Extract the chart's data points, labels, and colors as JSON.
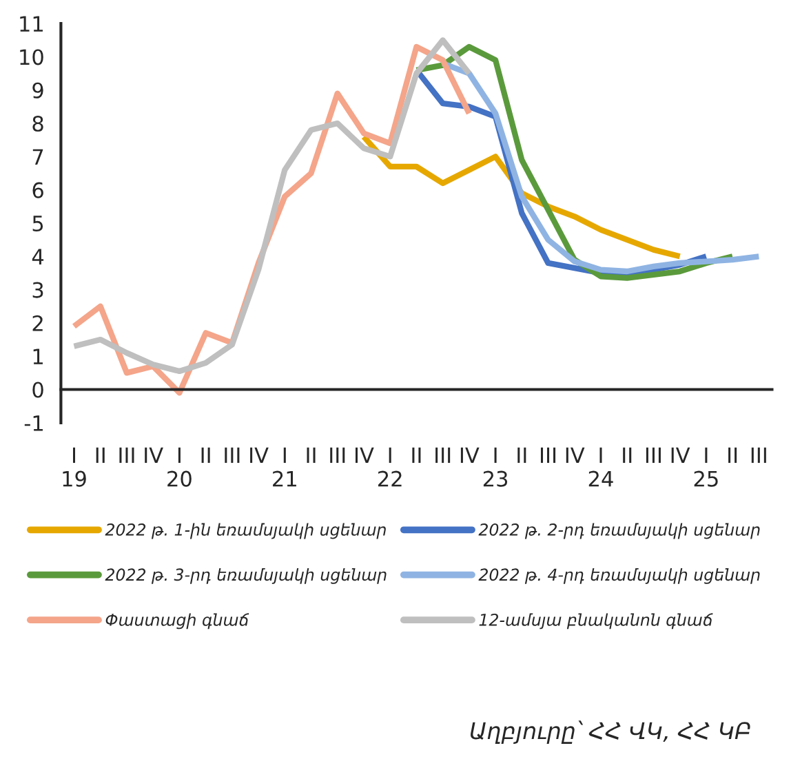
{
  "chart_data": {
    "type": "line",
    "categories": [
      "I\n19",
      "II",
      "III",
      "IV",
      "I\n20",
      "II",
      "III",
      "IV",
      "I\n21",
      "II",
      "III",
      "IV",
      "I\n22",
      "II",
      "III",
      "IV",
      "I\n23",
      "II",
      "III",
      "IV",
      "I\n24",
      "II",
      "III",
      "IV",
      "I\n25",
      "II",
      "III"
    ],
    "series": [
      {
        "name": "2022 թ. 1-ին եռամսյակի սցենար",
        "color": "#e6a800",
        "values": [
          null,
          null,
          null,
          null,
          null,
          null,
          null,
          null,
          null,
          null,
          null,
          7.6,
          6.7,
          6.7,
          6.2,
          6.6,
          7.0,
          5.9,
          5.5,
          5.2,
          4.8,
          4.5,
          4.2,
          4.0,
          null,
          null,
          null
        ]
      },
      {
        "name": "2022 թ. 2-րդ եռամսյակի սցենար",
        "color": "#4472c4",
        "values": [
          null,
          null,
          null,
          null,
          null,
          null,
          null,
          null,
          null,
          null,
          null,
          null,
          null,
          9.6,
          8.6,
          8.5,
          8.2,
          5.3,
          3.8,
          3.65,
          3.5,
          3.45,
          3.6,
          3.75,
          4.0,
          null,
          null
        ]
      },
      {
        "name": "2022 թ. 3-րդ եռամսյակի սցենար",
        "color": "#5b9a3c",
        "values": [
          null,
          null,
          null,
          null,
          null,
          null,
          null,
          null,
          null,
          null,
          null,
          null,
          null,
          9.6,
          9.75,
          10.3,
          9.9,
          6.9,
          5.4,
          3.9,
          3.4,
          3.35,
          3.45,
          3.55,
          3.8,
          4.0,
          null
        ]
      },
      {
        "name": "2022 թ. 4-րդ եռամսյակի սցենար",
        "color": "#8fb4e3",
        "values": [
          null,
          null,
          null,
          null,
          null,
          null,
          null,
          null,
          null,
          null,
          null,
          null,
          null,
          null,
          9.8,
          9.5,
          8.3,
          5.8,
          4.5,
          3.85,
          3.6,
          3.55,
          3.7,
          3.8,
          3.85,
          3.9,
          4.0
        ]
      },
      {
        "name": "Փաստացի գնաճ",
        "color": "#f4a58a",
        "values": [
          1.9,
          2.5,
          0.5,
          0.7,
          -0.1,
          1.7,
          1.4,
          3.8,
          5.8,
          6.5,
          8.9,
          7.7,
          7.4,
          10.3,
          9.9,
          8.3,
          null,
          null,
          null,
          null,
          null,
          null,
          null,
          null,
          null,
          null,
          null
        ]
      },
      {
        "name": "12-ամսյա բնականոն գնաճ",
        "color": "#bfbfbf",
        "values": [
          1.3,
          1.5,
          1.1,
          0.75,
          0.55,
          0.8,
          1.35,
          3.6,
          6.6,
          7.8,
          8.0,
          7.25,
          7.0,
          9.5,
          10.5,
          9.5,
          null,
          null,
          null,
          null,
          null,
          null,
          null,
          null,
          null,
          null,
          null
        ]
      }
    ],
    "ylim": [
      -1,
      11
    ],
    "yticks": [
      -1,
      0,
      1,
      2,
      3,
      4,
      5,
      6,
      7,
      8,
      9,
      10,
      11
    ],
    "legend": "bottom",
    "annotations": [
      "Աղբյուրը՝ ՀՀ ՎԿ, ՀՀ ԿԲ"
    ]
  }
}
